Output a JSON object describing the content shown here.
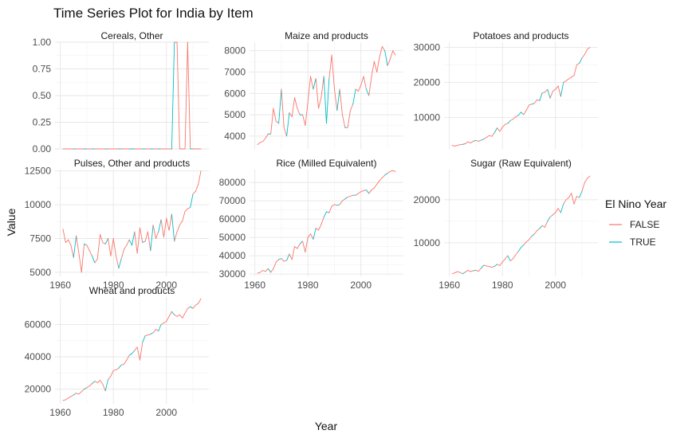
{
  "chart_data": {
    "type": "line",
    "title": "Time Series Plot for India by Item",
    "xlabel": "Year",
    "ylabel": "Value",
    "legend": {
      "title": "El Nino Year",
      "position": "right",
      "entries": [
        {
          "label": "FALSE",
          "color": "#F8766D"
        },
        {
          "label": "TRUE",
          "color": "#00BFC4"
        }
      ]
    },
    "grid": true,
    "xlim": [
      1958,
      2016
    ],
    "x_ticks": [
      "1960",
      "1980",
      "2000"
    ],
    "years": [
      1961,
      1962,
      1963,
      1964,
      1965,
      1966,
      1967,
      1968,
      1969,
      1970,
      1971,
      1972,
      1973,
      1974,
      1975,
      1976,
      1977,
      1978,
      1979,
      1980,
      1981,
      1982,
      1983,
      1984,
      1985,
      1986,
      1987,
      1988,
      1989,
      1990,
      1991,
      1992,
      1993,
      1994,
      1995,
      1996,
      1997,
      1998,
      1999,
      2000,
      2001,
      2002,
      2003,
      2004,
      2005,
      2006,
      2007,
      2008,
      2009,
      2010,
      2011,
      2012,
      2013
    ],
    "el_nino": [
      0,
      0,
      0,
      0,
      1,
      0,
      0,
      0,
      1,
      0,
      0,
      1,
      0,
      0,
      0,
      0,
      1,
      0,
      0,
      0,
      0,
      1,
      0,
      0,
      0,
      1,
      1,
      0,
      0,
      0,
      1,
      0,
      0,
      1,
      0,
      0,
      1,
      0,
      0,
      0,
      0,
      1,
      0,
      0,
      0,
      0,
      0,
      0,
      1,
      0,
      0,
      0,
      0
    ],
    "panels": [
      {
        "name": "Cereals, Other",
        "ylim": [
          0,
          1.0
        ],
        "yticks": [
          0,
          0.25,
          0.5,
          0.75,
          1.0
        ],
        "ytick_labels": [
          "0.00",
          "0.25",
          "0.50",
          "0.75",
          "1.00"
        ],
        "values": [
          0,
          0,
          0,
          0,
          0,
          0,
          0,
          0,
          0,
          0,
          0,
          0,
          0,
          0,
          0,
          0,
          0,
          0,
          0,
          0,
          0,
          0,
          0,
          0,
          0,
          0,
          0,
          0,
          0,
          0,
          0,
          0,
          0,
          0,
          0,
          0,
          0,
          0,
          0,
          0,
          0,
          0,
          1,
          1,
          0,
          0,
          0,
          1,
          0,
          0,
          0,
          0,
          0
        ]
      },
      {
        "name": "Maize and products",
        "ylim": [
          3400,
          8400
        ],
        "yticks": [
          4000,
          5000,
          6000,
          7000,
          8000
        ],
        "ytick_labels": [
          "4000",
          "5000",
          "6000",
          "7000",
          "8000"
        ],
        "values": [
          3600,
          3700,
          3750,
          3900,
          4100,
          4100,
          5300,
          4700,
          4600,
          6200,
          4400,
          4000,
          5100,
          4900,
          5800,
          5300,
          5000,
          5000,
          4500,
          5600,
          6800,
          6200,
          6700,
          5300,
          5800,
          6800,
          4600,
          6700,
          7800,
          6200,
          5200,
          6200,
          5000,
          4400,
          4400,
          5200,
          5500,
          6200,
          6100,
          6400,
          6800,
          6200,
          5900,
          6800,
          7500,
          7000,
          7700,
          8200,
          8000,
          7300,
          7600,
          8000,
          7800
        ]
      },
      {
        "name": "Potatoes and products",
        "ylim": [
          1000,
          31500
        ],
        "yticks": [
          10000,
          20000,
          30000
        ],
        "ytick_labels": [
          "10000",
          "20000",
          "30000"
        ],
        "values": [
          2000,
          1800,
          2000,
          2200,
          2300,
          2500,
          3000,
          2700,
          3200,
          3400,
          3200,
          3500,
          3800,
          4300,
          4800,
          4600,
          5600,
          7000,
          6000,
          7200,
          8000,
          8300,
          9100,
          9500,
          10200,
          10600,
          11500,
          10800,
          12000,
          13500,
          13800,
          14000,
          15000,
          14800,
          17000,
          17200,
          18000,
          15500,
          17500,
          18000,
          19000,
          16000,
          20000,
          20500,
          21000,
          21500,
          22000,
          25000,
          25500,
          27000,
          28000,
          29500,
          30000
        ]
      },
      {
        "name": "Pulses, Other and products",
        "ylim": [
          4700,
          12600
        ],
        "yticks": [
          5000,
          7500,
          10000,
          12500
        ],
        "ytick_labels": [
          "5000",
          "7500",
          "10000",
          "12500"
        ],
        "values": [
          8200,
          7200,
          7400,
          7000,
          6100,
          7700,
          6400,
          5000,
          7100,
          7000,
          6600,
          6200,
          5700,
          6000,
          7800,
          7200,
          7100,
          7500,
          6200,
          7500,
          6200,
          5300,
          6000,
          6700,
          7000,
          7400,
          7000,
          8000,
          6400,
          8300,
          7200,
          7300,
          8000,
          6600,
          8500,
          7500,
          8000,
          8900,
          7600,
          9000,
          8100,
          9300,
          7300,
          8000,
          8500,
          8800,
          9500,
          9700,
          9800,
          10800,
          11000,
          11500,
          12500
        ]
      },
      {
        "name": "Rice (Milled Equivalent)",
        "ylim": [
          28800,
          87000
        ],
        "yticks": [
          30000,
          40000,
          50000,
          60000,
          70000,
          80000
        ],
        "ytick_labels": [
          "30000",
          "40000",
          "50000",
          "60000",
          "70000",
          "80000"
        ],
        "values": [
          30500,
          31000,
          32000,
          31500,
          33000,
          31000,
          33000,
          36500,
          38000,
          38500,
          37000,
          37500,
          41000,
          38000,
          45000,
          44000,
          46500,
          48000,
          42000,
          50000,
          52000,
          49000,
          55000,
          54000,
          57000,
          61000,
          64000,
          63500,
          67000,
          68000,
          67500,
          68000,
          70000,
          71000,
          72000,
          72500,
          73000,
          73000,
          74000,
          75000,
          75500,
          76000,
          74000,
          76000,
          77000,
          79000,
          81000,
          82500,
          84000,
          85000,
          86000,
          86500,
          86000
        ]
      },
      {
        "name": "Sugar (Raw Equivalent)",
        "ylim": [
          2200,
          27000
        ],
        "yticks": [
          10000,
          20000
        ],
        "ytick_labels": [
          "10000",
          "20000"
        ],
        "values": [
          2800,
          3000,
          3300,
          3100,
          2800,
          3200,
          3600,
          3300,
          3500,
          3600,
          3400,
          4100,
          4800,
          4600,
          4500,
          4300,
          4500,
          5000,
          4700,
          5500,
          6200,
          7000,
          5800,
          6300,
          7200,
          8000,
          8900,
          9500,
          10200,
          10700,
          11500,
          12000,
          12800,
          13300,
          14000,
          13600,
          15000,
          16000,
          16500,
          17000,
          18000,
          17000,
          19000,
          20000,
          20500,
          21500,
          19000,
          20800,
          20500,
          22000,
          24000,
          25000,
          25500
        ]
      },
      {
        "name": "Wheat and products",
        "ylim": [
          11000,
          77000
        ],
        "yticks": [
          20000,
          40000,
          60000
        ],
        "ytick_labels": [
          "20000",
          "40000",
          "60000"
        ],
        "values": [
          13000,
          13500,
          14500,
          15500,
          16500,
          17500,
          17000,
          18500,
          20000,
          21000,
          22000,
          23500,
          25000,
          24000,
          25500,
          23000,
          19000,
          26000,
          28000,
          31500,
          32000,
          33000,
          35000,
          35500,
          38000,
          41000,
          42000,
          44000,
          46000,
          38000,
          49000,
          53000,
          53500,
          54000,
          55000,
          57000,
          56000,
          60000,
          61000,
          62000,
          65000,
          68000,
          66000,
          65000,
          66000,
          64000,
          67000,
          70000,
          71000,
          70000,
          72000,
          73000,
          76000
        ]
      }
    ]
  }
}
